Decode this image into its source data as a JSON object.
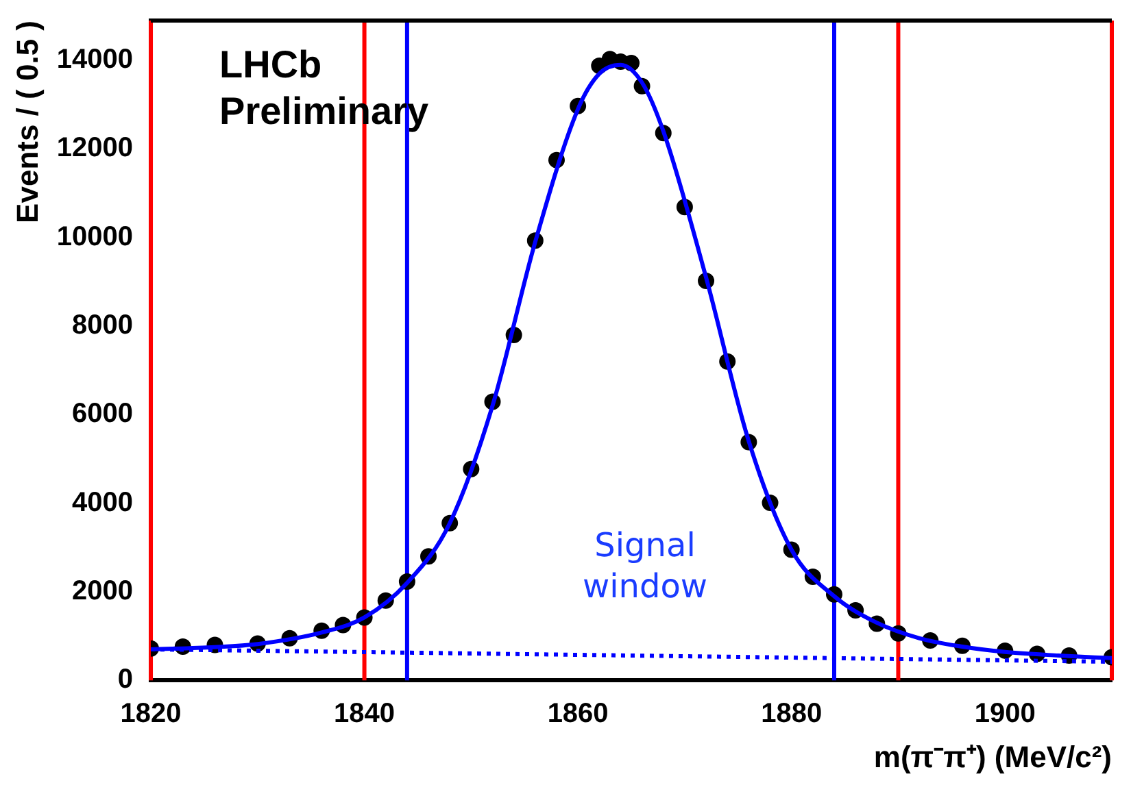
{
  "chart_data": {
    "type": "scatter",
    "xlabel": "m(π⁻π⁺) (MeV/c²)",
    "ylabel": "Events / ( 0.5 )",
    "xlim": [
      1820,
      1910
    ],
    "xticks": [
      1820,
      1840,
      1860,
      1880,
      1900
    ],
    "ylim": [
      0,
      14900
    ],
    "yticks": [
      0,
      2000,
      4000,
      6000,
      8000,
      10000,
      12000,
      14000
    ],
    "grid": false,
    "legend": false,
    "series": [
      {
        "marker": "circle",
        "color": "#000000",
        "x": [
          1820,
          1823,
          1826,
          1830,
          1833,
          1836,
          1838,
          1840,
          1842,
          1844,
          1846,
          1848,
          1850,
          1852,
          1854,
          1856,
          1858,
          1860,
          1862,
          1863,
          1864,
          1865,
          1866,
          1868,
          1870,
          1872,
          1874,
          1876,
          1878,
          1880,
          1882,
          1884,
          1886,
          1888,
          1890,
          1893,
          1896,
          1900,
          1903,
          1906,
          1910
        ],
        "values": [
          720,
          760,
          800,
          830,
          950,
          1120,
          1250,
          1420,
          1800,
          2230,
          2800,
          3550,
          4770,
          6290,
          7800,
          9930,
          11750,
          12970,
          13880,
          14030,
          13970,
          13940,
          13420,
          12360,
          10690,
          9020,
          7200,
          5380,
          4010,
          2950,
          2340,
          1940,
          1580,
          1280,
          1060,
          900,
          780,
          670,
          600,
          560,
          520
        ]
      },
      {
        "type": "line",
        "line_style": "solid",
        "color": "#0000ff",
        "x": [
          1820,
          1826,
          1830,
          1836,
          1840,
          1844,
          1848,
          1852,
          1856,
          1860,
          1862,
          1864,
          1866,
          1868,
          1872,
          1876,
          1880,
          1884,
          1888,
          1892,
          1896,
          1900,
          1905,
          1910
        ],
        "values": [
          700,
          750,
          820,
          1080,
          1420,
          2200,
          3550,
          6200,
          9900,
          12900,
          13700,
          13900,
          13500,
          12400,
          9100,
          5400,
          2950,
          1900,
          1300,
          950,
          760,
          640,
          560,
          500
        ]
      },
      {
        "type": "line",
        "line_style": "dotted",
        "color": "#0000ff",
        "x": [
          1820,
          1910
        ],
        "values": [
          700,
          420
        ]
      }
    ],
    "ref_lines": [
      {
        "axis": "x",
        "value": 1820,
        "color": "#ff0000"
      },
      {
        "axis": "x",
        "value": 1840,
        "color": "#ff0000"
      },
      {
        "axis": "x",
        "value": 1844,
        "color": "#0000ff"
      },
      {
        "axis": "x",
        "value": 1884,
        "color": "#0000ff"
      },
      {
        "axis": "x",
        "value": 1890,
        "color": "#ff0000"
      },
      {
        "axis": "x",
        "value": 1910,
        "color": "#ff0000"
      }
    ],
    "annotations": [
      "LHCb\nPreliminary",
      "Signal\nwindow"
    ]
  }
}
